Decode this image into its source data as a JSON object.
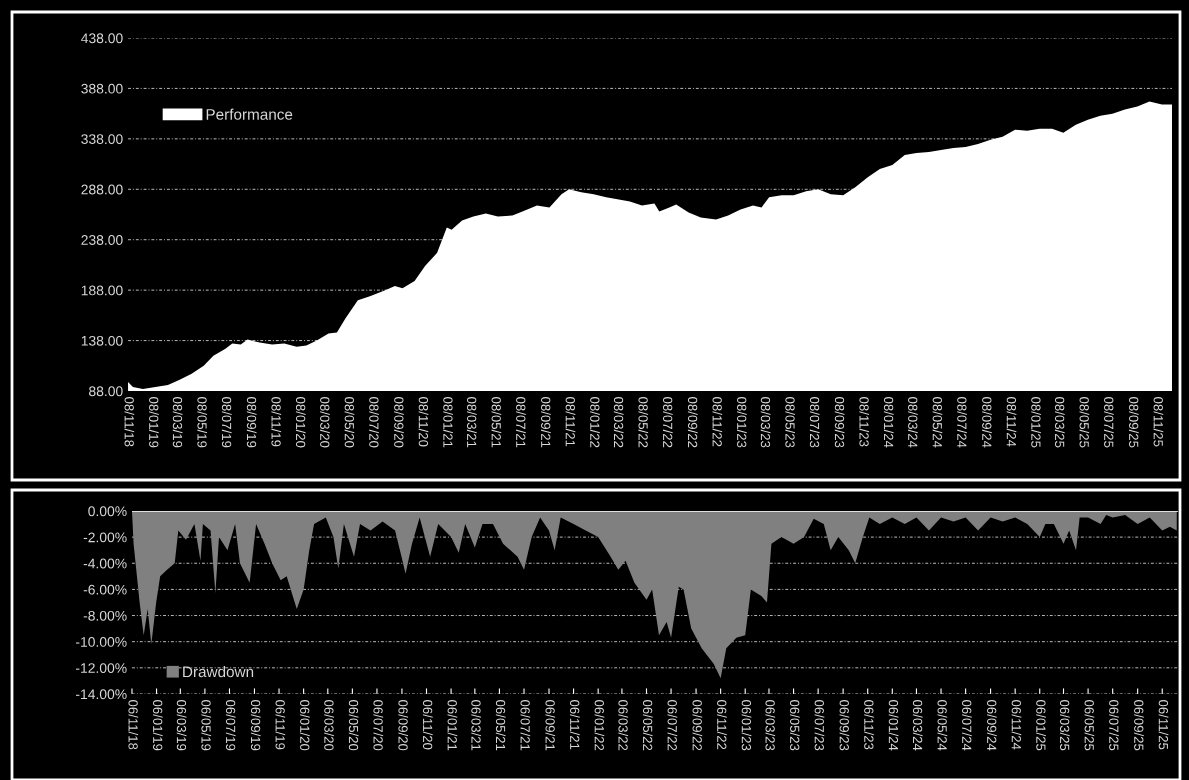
{
  "chart_data": [
    {
      "type": "area",
      "legend": "top left",
      "grid": "y",
      "xlim": [
        "2018-11-08",
        "2025-12-15"
      ],
      "ylim": [
        88,
        438
      ],
      "yticks": [
        {
          "value": 88,
          "label": "88.00"
        },
        {
          "value": 138,
          "label": "138.00"
        },
        {
          "value": 188,
          "label": "188.00"
        },
        {
          "value": 238,
          "label": "238.00"
        },
        {
          "value": 288,
          "label": "288.00"
        },
        {
          "value": 338,
          "label": "338.00"
        },
        {
          "value": 388,
          "label": "388.00"
        },
        {
          "value": 438,
          "label": "438.00"
        }
      ],
      "xticks": [
        {
          "value": "2018-11-08",
          "label": "08/11/18"
        },
        {
          "value": "2019-01-08",
          "label": "08/01/19"
        },
        {
          "value": "2019-03-08",
          "label": "08/03/19"
        },
        {
          "value": "2019-05-08",
          "label": "08/05/19"
        },
        {
          "value": "2019-07-08",
          "label": "08/07/19"
        },
        {
          "value": "2019-09-08",
          "label": "08/09/19"
        },
        {
          "value": "2019-11-08",
          "label": "08/11/19"
        },
        {
          "value": "2020-01-08",
          "label": "08/01/20"
        },
        {
          "value": "2020-03-08",
          "label": "08/03/20"
        },
        {
          "value": "2020-05-08",
          "label": "08/05/20"
        },
        {
          "value": "2020-07-08",
          "label": "08/07/20"
        },
        {
          "value": "2020-09-08",
          "label": "08/09/20"
        },
        {
          "value": "2020-11-08",
          "label": "08/11/20"
        },
        {
          "value": "2021-01-08",
          "label": "08/01/21"
        },
        {
          "value": "2021-03-08",
          "label": "08/03/21"
        },
        {
          "value": "2021-05-08",
          "label": "08/05/21"
        },
        {
          "value": "2021-07-08",
          "label": "08/07/21"
        },
        {
          "value": "2021-09-08",
          "label": "08/09/21"
        },
        {
          "value": "2021-11-08",
          "label": "08/11/21"
        },
        {
          "value": "2022-01-08",
          "label": "08/01/22"
        },
        {
          "value": "2022-03-08",
          "label": "08/03/22"
        },
        {
          "value": "2022-05-08",
          "label": "08/05/22"
        },
        {
          "value": "2022-07-08",
          "label": "08/07/22"
        },
        {
          "value": "2022-09-08",
          "label": "08/09/22"
        },
        {
          "value": "2022-11-08",
          "label": "08/11/22"
        },
        {
          "value": "2023-01-08",
          "label": "08/01/23"
        },
        {
          "value": "2023-03-08",
          "label": "08/03/23"
        },
        {
          "value": "2023-05-08",
          "label": "08/05/23"
        },
        {
          "value": "2023-07-08",
          "label": "08/07/23"
        },
        {
          "value": "2023-09-08",
          "label": "08/09/23"
        },
        {
          "value": "2023-11-08",
          "label": "08/11/23"
        },
        {
          "value": "2024-01-08",
          "label": "08/01/24"
        },
        {
          "value": "2024-03-08",
          "label": "08/03/24"
        },
        {
          "value": "2024-05-08",
          "label": "08/05/24"
        },
        {
          "value": "2024-07-08",
          "label": "08/07/24"
        },
        {
          "value": "2024-09-08",
          "label": "08/09/24"
        },
        {
          "value": "2024-11-08",
          "label": "08/11/24"
        },
        {
          "value": "2025-01-08",
          "label": "08/01/25"
        },
        {
          "value": "2025-03-08",
          "label": "08/03/25"
        },
        {
          "value": "2025-05-08",
          "label": "08/05/25"
        },
        {
          "value": "2025-07-08",
          "label": "08/07/25"
        },
        {
          "value": "2025-09-08",
          "label": "08/09/25"
        },
        {
          "value": "2025-11-08",
          "label": "08/11/25"
        }
      ],
      "x": [
        "2018-11-08",
        "2018-11-20",
        "2018-12-15",
        "2019-01-15",
        "2019-02-15",
        "2019-03-15",
        "2019-04-15",
        "2019-05-15",
        "2019-06-08",
        "2019-07-08",
        "2019-07-25",
        "2019-08-15",
        "2019-09-01",
        "2019-10-01",
        "2019-11-01",
        "2019-12-01",
        "2020-01-01",
        "2020-01-25",
        "2020-02-20",
        "2020-03-20",
        "2020-04-10",
        "2020-05-01",
        "2020-06-01",
        "2020-07-01",
        "2020-08-08",
        "2020-09-01",
        "2020-09-20",
        "2020-10-20",
        "2020-11-15",
        "2020-12-15",
        "2021-01-08",
        "2021-01-20",
        "2021-02-15",
        "2021-03-15",
        "2021-04-15",
        "2021-05-15",
        "2021-06-20",
        "2021-07-15",
        "2021-08-20",
        "2021-09-20",
        "2021-10-20",
        "2021-11-08",
        "2021-12-08",
        "2022-01-08",
        "2022-02-08",
        "2022-03-08",
        "2022-04-08",
        "2022-05-08",
        "2022-06-08",
        "2022-06-20",
        "2022-07-15",
        "2022-08-01",
        "2022-09-01",
        "2022-10-01",
        "2022-11-08",
        "2022-12-08",
        "2023-01-08",
        "2023-02-08",
        "2023-03-01",
        "2023-03-20",
        "2023-04-20",
        "2023-05-20",
        "2023-06-20",
        "2023-07-20",
        "2023-08-20",
        "2023-09-20",
        "2023-10-20",
        "2023-11-20",
        "2023-12-20",
        "2024-01-20",
        "2024-02-20",
        "2024-03-20",
        "2024-04-20",
        "2024-05-20",
        "2024-06-20",
        "2024-07-20",
        "2024-08-20",
        "2024-09-20",
        "2024-10-20",
        "2024-11-20",
        "2024-12-20",
        "2025-01-20",
        "2025-02-20",
        "2025-03-20",
        "2025-04-20",
        "2025-05-20",
        "2025-06-20",
        "2025-07-20",
        "2025-08-20",
        "2025-09-20",
        "2025-10-20",
        "2025-11-20",
        "2025-12-15"
      ],
      "series": [
        {
          "name": "Performance",
          "color": "#ffffff",
          "values": [
            97,
            92,
            90,
            92,
            94,
            99,
            105,
            113,
            123,
            130,
            135,
            134,
            139,
            136,
            134,
            135,
            132,
            133,
            138,
            145,
            146,
            160,
            178,
            182,
            188,
            192,
            190,
            197,
            212,
            225,
            250,
            248,
            257,
            261,
            264,
            261,
            262,
            266,
            272,
            270,
            283,
            288,
            285,
            283,
            280,
            278,
            276,
            272,
            274,
            266,
            270,
            273,
            265,
            260,
            258,
            262,
            268,
            272,
            270,
            280,
            282,
            282,
            286,
            288,
            283,
            282,
            290,
            300,
            308,
            312,
            322,
            324,
            325,
            327,
            329,
            330,
            333,
            337,
            340,
            347,
            346,
            348,
            348,
            344,
            352,
            357,
            361,
            363,
            367,
            370,
            375,
            372,
            372
          ]
        }
      ]
    },
    {
      "type": "area",
      "legend": "bottom left",
      "grid": "y",
      "xlim": [
        "2018-11-06",
        "2025-12-15"
      ],
      "ylim": [
        -14,
        0
      ],
      "yticks": [
        {
          "value": 0,
          "label": "0.00%"
        },
        {
          "value": -2,
          "label": "-2.00%"
        },
        {
          "value": -4,
          "label": "-4.00%"
        },
        {
          "value": -6,
          "label": "-6.00%"
        },
        {
          "value": -8,
          "label": "-8.00%"
        },
        {
          "value": -10,
          "label": "-10.00%"
        },
        {
          "value": -12,
          "label": "-12.00%"
        },
        {
          "value": -14,
          "label": "-14.00%"
        }
      ],
      "xticks": [
        {
          "value": "2018-11-06",
          "label": "06/11/18"
        },
        {
          "value": "2019-01-06",
          "label": "06/01/19"
        },
        {
          "value": "2019-03-06",
          "label": "06/03/19"
        },
        {
          "value": "2019-05-06",
          "label": "06/05/19"
        },
        {
          "value": "2019-07-06",
          "label": "06/07/19"
        },
        {
          "value": "2019-09-06",
          "label": "06/09/19"
        },
        {
          "value": "2019-11-06",
          "label": "06/11/19"
        },
        {
          "value": "2020-01-06",
          "label": "06/01/20"
        },
        {
          "value": "2020-03-06",
          "label": "06/03/20"
        },
        {
          "value": "2020-05-06",
          "label": "06/05/20"
        },
        {
          "value": "2020-07-06",
          "label": "06/07/20"
        },
        {
          "value": "2020-09-06",
          "label": "06/09/20"
        },
        {
          "value": "2020-11-06",
          "label": "06/11/20"
        },
        {
          "value": "2021-01-06",
          "label": "06/01/21"
        },
        {
          "value": "2021-03-06",
          "label": "06/03/21"
        },
        {
          "value": "2021-05-06",
          "label": "06/05/21"
        },
        {
          "value": "2021-07-06",
          "label": "06/07/21"
        },
        {
          "value": "2021-09-06",
          "label": "06/09/21"
        },
        {
          "value": "2021-11-06",
          "label": "06/11/21"
        },
        {
          "value": "2022-01-06",
          "label": "06/01/22"
        },
        {
          "value": "2022-03-06",
          "label": "06/03/22"
        },
        {
          "value": "2022-05-06",
          "label": "06/05/22"
        },
        {
          "value": "2022-07-06",
          "label": "06/07/22"
        },
        {
          "value": "2022-09-06",
          "label": "06/09/22"
        },
        {
          "value": "2022-11-06",
          "label": "06/11/22"
        },
        {
          "value": "2023-01-06",
          "label": "06/01/23"
        },
        {
          "value": "2023-03-06",
          "label": "06/03/23"
        },
        {
          "value": "2023-05-06",
          "label": "06/05/23"
        },
        {
          "value": "2023-07-06",
          "label": "06/07/23"
        },
        {
          "value": "2023-09-06",
          "label": "06/09/23"
        },
        {
          "value": "2023-11-06",
          "label": "06/11/23"
        },
        {
          "value": "2024-01-06",
          "label": "06/01/24"
        },
        {
          "value": "2024-03-06",
          "label": "06/03/24"
        },
        {
          "value": "2024-05-06",
          "label": "06/05/24"
        },
        {
          "value": "2024-07-06",
          "label": "06/07/24"
        },
        {
          "value": "2024-09-06",
          "label": "06/09/24"
        },
        {
          "value": "2024-11-06",
          "label": "06/11/24"
        },
        {
          "value": "2025-01-06",
          "label": "06/01/25"
        },
        {
          "value": "2025-03-06",
          "label": "06/03/25"
        },
        {
          "value": "2025-05-06",
          "label": "06/05/25"
        },
        {
          "value": "2025-07-06",
          "label": "06/07/25"
        },
        {
          "value": "2025-09-06",
          "label": "06/09/25"
        },
        {
          "value": "2025-11-06",
          "label": "06/11/25"
        }
      ],
      "x": [
        "2018-11-06",
        "2018-11-10",
        "2018-11-25",
        "2018-12-05",
        "2018-12-15",
        "2018-12-24",
        "2019-01-05",
        "2019-01-15",
        "2019-02-01",
        "2019-02-20",
        "2019-03-01",
        "2019-03-20",
        "2019-04-10",
        "2019-04-25",
        "2019-05-01",
        "2019-05-20",
        "2019-06-01",
        "2019-06-10",
        "2019-07-01",
        "2019-07-20",
        "2019-08-01",
        "2019-08-25",
        "2019-09-10",
        "2019-10-01",
        "2019-10-20",
        "2019-11-10",
        "2019-11-25",
        "2019-12-10",
        "2019-12-20",
        "2020-01-06",
        "2020-01-20",
        "2020-02-01",
        "2020-03-01",
        "2020-03-20",
        "2020-04-01",
        "2020-04-15",
        "2020-05-10",
        "2020-05-25",
        "2020-06-20",
        "2020-07-20",
        "2020-08-20",
        "2020-09-05",
        "2020-09-15",
        "2020-10-01",
        "2020-10-20",
        "2020-11-15",
        "2020-12-05",
        "2021-01-06",
        "2021-01-25",
        "2021-02-10",
        "2021-03-06",
        "2021-03-25",
        "2021-04-20",
        "2021-05-15",
        "2021-06-20",
        "2021-07-06",
        "2021-07-25",
        "2021-08-15",
        "2021-09-06",
        "2021-09-20",
        "2021-10-05",
        "2021-11-06",
        "2021-12-06",
        "2022-01-06",
        "2022-02-06",
        "2022-02-25",
        "2022-03-15",
        "2022-04-06",
        "2022-05-06",
        "2022-05-20",
        "2022-06-06",
        "2022-06-25",
        "2022-07-06",
        "2022-07-25",
        "2022-08-06",
        "2022-08-25",
        "2022-09-20",
        "2022-10-20",
        "2022-11-06",
        "2022-11-20",
        "2022-12-15",
        "2023-01-06",
        "2023-01-20",
        "2023-02-15",
        "2023-03-01",
        "2023-03-12",
        "2023-04-06",
        "2023-05-06",
        "2023-06-01",
        "2023-06-25",
        "2023-07-20",
        "2023-08-06",
        "2023-08-25",
        "2023-09-20",
        "2023-10-06",
        "2023-10-25",
        "2023-11-10",
        "2023-12-06",
        "2024-01-06",
        "2024-02-06",
        "2024-03-06",
        "2024-04-06",
        "2024-05-06",
        "2024-06-06",
        "2024-07-06",
        "2024-08-06",
        "2024-09-06",
        "2024-10-06",
        "2024-11-06",
        "2024-12-06",
        "2025-01-06",
        "2025-01-20",
        "2025-02-10",
        "2025-03-06",
        "2025-03-20",
        "2025-04-06",
        "2025-04-15",
        "2025-05-06",
        "2025-06-06",
        "2025-06-20",
        "2025-07-06",
        "2025-08-06",
        "2025-09-06",
        "2025-10-06",
        "2025-11-06",
        "2025-11-25",
        "2025-12-12"
      ],
      "series": [
        {
          "name": "Drawdown",
          "color": "#808080",
          "values": [
            0,
            -2.5,
            -7,
            -9.5,
            -7.5,
            -10.2,
            -7,
            -5,
            -4.5,
            -4,
            -1.5,
            -2.2,
            -1,
            -3.8,
            -1,
            -1.5,
            -6.3,
            -2,
            -3,
            -1,
            -4,
            -5.5,
            -1,
            -2.5,
            -4,
            -5.3,
            -5,
            -6.5,
            -7.5,
            -6,
            -3,
            -1,
            -0.5,
            -2,
            -4.4,
            -1,
            -3.5,
            -1,
            -1.5,
            -0.8,
            -1.5,
            -3.5,
            -4.8,
            -2.5,
            -0.5,
            -3.5,
            -1,
            -2,
            -3.2,
            -1,
            -2.8,
            -1,
            -1,
            -2.5,
            -3.5,
            -4.5,
            -2,
            -0.5,
            -1.5,
            -3,
            -0.5,
            -1,
            -1.5,
            -2,
            -3.5,
            -4.5,
            -3.8,
            -5.5,
            -6.8,
            -6,
            -9.5,
            -8.5,
            -9.7,
            -5.8,
            -6,
            -9,
            -10.5,
            -11.7,
            -12.8,
            -10.5,
            -9.7,
            -9.5,
            -6,
            -6.5,
            -7,
            -2.5,
            -2,
            -2.5,
            -2,
            -0.6,
            -1,
            -3,
            -2,
            -3,
            -4,
            -2,
            -0.5,
            -1,
            -0.5,
            -1,
            -0.5,
            -1.5,
            -0.5,
            -0.8,
            -0.5,
            -1.5,
            -0.5,
            -0.8,
            -0.5,
            -1,
            -2,
            -1,
            -1,
            -2.5,
            -1.5,
            -3,
            -0.5,
            -0.5,
            -1,
            -0.3,
            -0.5,
            -0.3,
            -1,
            -0.5,
            -1.5,
            -1.2,
            -1.5
          ]
        }
      ]
    }
  ]
}
